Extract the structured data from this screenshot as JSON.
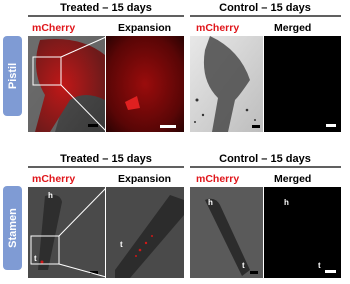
{
  "rows": [
    {
      "label": "Pistil",
      "panels": [
        {
          "title": "Treated – 15 days",
          "images": [
            "mCherry",
            "Expansion"
          ]
        },
        {
          "title": "Control – 15 days",
          "images": [
            "mCherry",
            "Merged"
          ]
        }
      ]
    },
    {
      "label": "Stamen",
      "panels": [
        {
          "title": "Treated – 15 days",
          "images": [
            "mCherry",
            "Expansion"
          ],
          "annotations": [
            [
              "h",
              "t"
            ],
            [
              "t"
            ]
          ]
        },
        {
          "title": "Control – 15 days",
          "images": [
            "mCherry",
            "Merged"
          ],
          "annotations": [
            [
              "h",
              "t"
            ],
            [
              "h",
              "t"
            ]
          ]
        }
      ]
    }
  ]
}
